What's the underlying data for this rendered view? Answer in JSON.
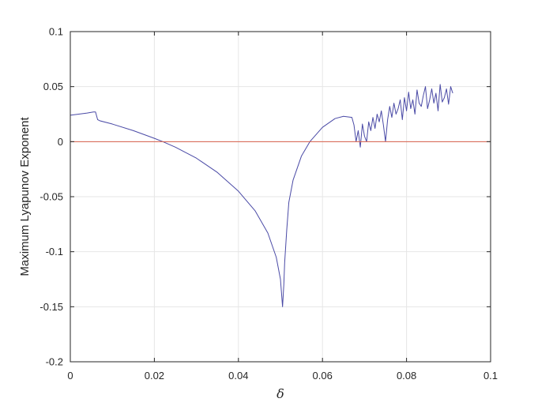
{
  "chart_data": {
    "type": "line",
    "title": "",
    "xlabel": "δ",
    "ylabel": "Maximum Lyapunov Exponent",
    "xlim": [
      0,
      0.1
    ],
    "ylim": [
      -0.2,
      0.1
    ],
    "xticks": [
      0,
      0.02,
      0.04,
      0.06,
      0.08,
      0.1
    ],
    "xtick_labels": [
      "0",
      "0.02",
      "0.04",
      "0.06",
      "0.08",
      "0.1"
    ],
    "yticks": [
      0.1,
      0.05,
      0,
      -0.05,
      -0.1,
      -0.15,
      -0.2
    ],
    "ytick_labels": [
      "0.1",
      "0.05",
      "0",
      "-0.05",
      "-0.1",
      "-0.15",
      "-0.2"
    ],
    "grid": true,
    "colors": {
      "series": "#4a4aa6",
      "zero_line": "#d95f4a",
      "grid": "#e6e6e6",
      "axes": "#262626"
    },
    "series": [
      {
        "color": "#4a4aa6",
        "x": [
          0,
          0.002,
          0.004,
          0.0055,
          0.006,
          0.0065,
          0.007,
          0.01,
          0.015,
          0.02,
          0.022,
          0.025,
          0.03,
          0.035,
          0.04,
          0.044,
          0.047,
          0.049,
          0.05,
          0.0505,
          0.0508,
          0.051,
          0.0515,
          0.052,
          0.053,
          0.055,
          0.057,
          0.06,
          0.063,
          0.065,
          0.067,
          0.0675,
          0.068,
          0.0685,
          0.069,
          0.0695,
          0.07,
          0.0705,
          0.071,
          0.0715,
          0.072,
          0.0725,
          0.073,
          0.0735,
          0.074,
          0.0745,
          0.075,
          0.0755,
          0.076,
          0.0765,
          0.077,
          0.0775,
          0.078,
          0.0785,
          0.079,
          0.0795,
          0.08,
          0.0805,
          0.081,
          0.0815,
          0.082,
          0.0825,
          0.083,
          0.0835,
          0.084,
          0.0845,
          0.085,
          0.0855,
          0.086,
          0.0865,
          0.087,
          0.0875,
          0.088,
          0.0885,
          0.089,
          0.0895,
          0.09,
          0.0905,
          0.091
        ],
        "y": [
          0.024,
          0.025,
          0.026,
          0.027,
          0.027,
          0.02,
          0.019,
          0.016,
          0.01,
          0.003,
          0.0,
          -0.005,
          -0.015,
          -0.028,
          -0.045,
          -0.063,
          -0.083,
          -0.105,
          -0.125,
          -0.15,
          -0.13,
          -0.11,
          -0.08,
          -0.055,
          -0.035,
          -0.013,
          0.0,
          0.013,
          0.021,
          0.023,
          0.022,
          0.015,
          0.0,
          0.01,
          -0.005,
          0.016,
          0.005,
          0.0,
          0.018,
          0.01,
          0.022,
          0.012,
          0.025,
          0.018,
          0.028,
          0.015,
          0.0,
          0.02,
          0.032,
          0.022,
          0.035,
          0.025,
          0.03,
          0.038,
          0.02,
          0.04,
          0.028,
          0.045,
          0.03,
          0.038,
          0.025,
          0.047,
          0.035,
          0.032,
          0.042,
          0.05,
          0.03,
          0.038,
          0.048,
          0.035,
          0.044,
          0.028,
          0.052,
          0.036,
          0.04,
          0.048,
          0.034,
          0.05,
          0.044
        ]
      },
      {
        "color": "#d95f4a",
        "x": [
          0,
          0.1
        ],
        "y": [
          0,
          0
        ]
      }
    ]
  }
}
